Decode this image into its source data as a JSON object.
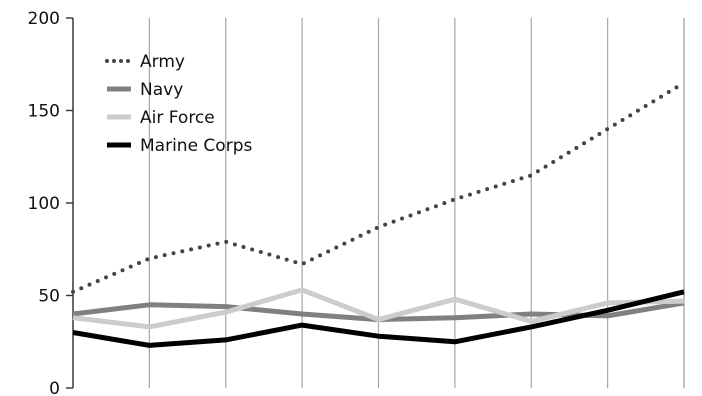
{
  "chart_data": {
    "type": "line",
    "title": "",
    "xlabel": "",
    "ylabel": "",
    "x": [
      1,
      2,
      3,
      4,
      5,
      6,
      7,
      8,
      9
    ],
    "xlim": [
      1,
      9
    ],
    "ylim": [
      0,
      200
    ],
    "yticks": [
      0,
      50,
      100,
      150,
      200
    ],
    "grid": {
      "horizontal": false,
      "vertical": true
    },
    "legend_position": "top-left",
    "series": [
      {
        "name": "Army",
        "color": "#444444",
        "style": "dotted",
        "values": [
          52,
          70,
          79,
          67,
          87,
          102,
          115,
          140,
          165
        ]
      },
      {
        "name": "Navy",
        "color": "#808080",
        "style": "solid",
        "values": [
          40,
          45,
          44,
          40,
          37,
          38,
          40,
          39,
          46
        ]
      },
      {
        "name": "Air Force",
        "color": "#cccccc",
        "style": "solid",
        "values": [
          38,
          33,
          41,
          53,
          37,
          48,
          36,
          46,
          47
        ]
      },
      {
        "name": "Marine Corps",
        "color": "#000000",
        "style": "solid",
        "values": [
          30,
          23,
          26,
          34,
          28,
          25,
          33,
          42,
          52
        ]
      }
    ]
  }
}
